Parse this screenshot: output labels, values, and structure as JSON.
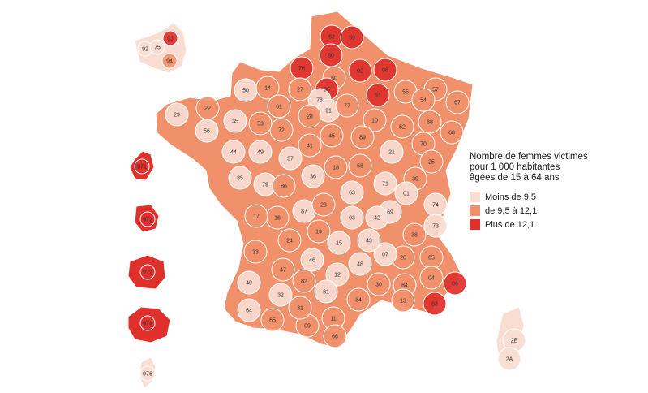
{
  "legend": {
    "title_lines": [
      "Nombre de femmes victimes",
      "pour 1 000 habitantes",
      "âgées de 15 à 64 ans"
    ],
    "classes": [
      {
        "label": "Moins de 9,5",
        "color": "#f9ddd2"
      },
      {
        "label": "de 9,5 à 12,1",
        "color": "#f0916c"
      },
      {
        "label": "Plus de 12,1",
        "color": "#e0302c"
      }
    ]
  },
  "departments": [
    {
      "code": "62",
      "level": 3
    },
    {
      "code": "59",
      "level": 3
    },
    {
      "code": "80",
      "level": 3
    },
    {
      "code": "02",
      "level": 3
    },
    {
      "code": "76",
      "level": 3
    },
    {
      "code": "60",
      "level": 2
    },
    {
      "code": "08",
      "level": 3
    },
    {
      "code": "95",
      "level": 3
    },
    {
      "code": "93",
      "level": 3
    },
    {
      "code": "78",
      "level": 1
    },
    {
      "code": "91",
      "level": 1
    },
    {
      "code": "77",
      "level": 2
    },
    {
      "code": "51",
      "level": 3
    },
    {
      "code": "55",
      "level": 2
    },
    {
      "code": "57",
      "level": 2
    },
    {
      "code": "54",
      "level": 2
    },
    {
      "code": "67",
      "level": 2
    },
    {
      "code": "52",
      "level": 2
    },
    {
      "code": "88",
      "level": 2
    },
    {
      "code": "68",
      "level": 2
    },
    {
      "code": "10",
      "level": 2
    },
    {
      "code": "89",
      "level": 2
    },
    {
      "code": "21",
      "level": 1
    },
    {
      "code": "70",
      "level": 2
    },
    {
      "code": "25",
      "level": 2
    },
    {
      "code": "39",
      "level": 2
    },
    {
      "code": "58",
      "level": 2
    },
    {
      "code": "71",
      "level": 1
    },
    {
      "code": "01",
      "level": 1
    },
    {
      "code": "74",
      "level": 1
    },
    {
      "code": "73",
      "level": 1
    },
    {
      "code": "69",
      "level": 1
    },
    {
      "code": "42",
      "level": 1
    },
    {
      "code": "63",
      "level": 1
    },
    {
      "code": "03",
      "level": 1
    },
    {
      "code": "38",
      "level": 2
    },
    {
      "code": "26",
      "level": 2
    },
    {
      "code": "05",
      "level": 2
    },
    {
      "code": "04",
      "level": 2
    },
    {
      "code": "06",
      "level": 3
    },
    {
      "code": "83",
      "level": 3
    },
    {
      "code": "84",
      "level": 2
    },
    {
      "code": "13",
      "level": 2
    },
    {
      "code": "30",
      "level": 2
    },
    {
      "code": "34",
      "level": 2
    },
    {
      "code": "48",
      "level": 1
    },
    {
      "code": "07",
      "level": 1
    },
    {
      "code": "43",
      "level": 1
    },
    {
      "code": "15",
      "level": 1
    },
    {
      "code": "12",
      "level": 1
    },
    {
      "code": "81",
      "level": 1
    },
    {
      "code": "11",
      "level": 2
    },
    {
      "code": "66",
      "level": 2
    },
    {
      "code": "09",
      "level": 2
    },
    {
      "code": "31",
      "level": 2
    },
    {
      "code": "82",
      "level": 2
    },
    {
      "code": "46",
      "level": 1
    },
    {
      "code": "32",
      "level": 1
    },
    {
      "code": "65",
      "level": 2
    },
    {
      "code": "64",
      "level": 1
    },
    {
      "code": "40",
      "level": 1
    },
    {
      "code": "47",
      "level": 2
    },
    {
      "code": "33",
      "level": 2
    },
    {
      "code": "24",
      "level": 2
    },
    {
      "code": "19",
      "level": 2
    },
    {
      "code": "87",
      "level": 1
    },
    {
      "code": "23",
      "level": 2
    },
    {
      "code": "16",
      "level": 2
    },
    {
      "code": "17",
      "level": 2
    },
    {
      "code": "79",
      "level": 1
    },
    {
      "code": "86",
      "level": 2
    },
    {
      "code": "85",
      "level": 1
    },
    {
      "code": "44",
      "level": 1
    },
    {
      "code": "49",
      "level": 1
    },
    {
      "code": "37",
      "level": 1
    },
    {
      "code": "36",
      "level": 1
    },
    {
      "code": "18",
      "level": 2
    },
    {
      "code": "41",
      "level": 2
    },
    {
      "code": "45",
      "level": 2
    },
    {
      "code": "28",
      "level": 2
    },
    {
      "code": "72",
      "level": 2
    },
    {
      "code": "53",
      "level": 2
    },
    {
      "code": "35",
      "level": 1
    },
    {
      "code": "56",
      "level": 1
    },
    {
      "code": "22",
      "level": 2
    },
    {
      "code": "29",
      "level": 1
    },
    {
      "code": "50",
      "level": 1
    },
    {
      "code": "14",
      "level": 2
    },
    {
      "code": "61",
      "level": 2
    },
    {
      "code": "27",
      "level": 2
    },
    {
      "code": "2B",
      "level": 1
    },
    {
      "code": "2A",
      "level": 1
    },
    {
      "code": "92",
      "level": 1
    },
    {
      "code": "75",
      "level": 1
    },
    {
      "code": "94",
      "level": 2
    },
    {
      "code": "971",
      "level": 3
    },
    {
      "code": "972",
      "level": 3
    },
    {
      "code": "973",
      "level": 3
    },
    {
      "code": "974",
      "level": 3
    },
    {
      "code": "976",
      "level": 1
    }
  ]
}
